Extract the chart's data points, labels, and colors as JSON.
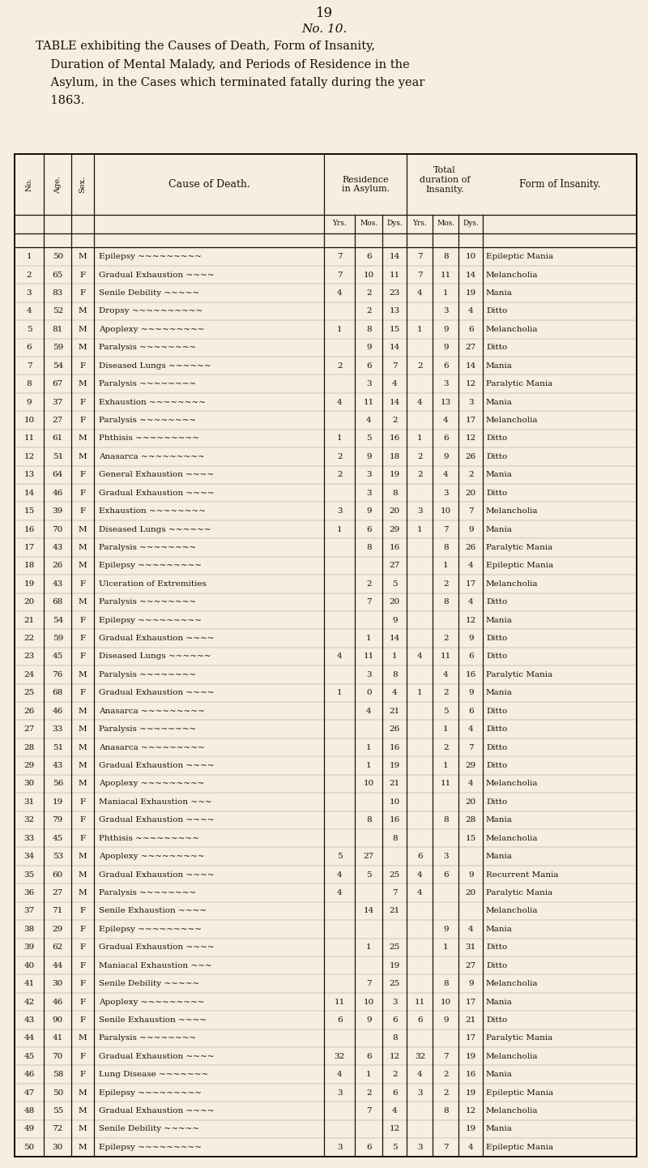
{
  "page_number": "19",
  "no_label": "No. 10.",
  "title_line1": "TABLE exhibiting the Causes of Death, Form of Insanity,",
  "title_line2": "    Duration of Mental Malady, and Periods of Residence in the",
  "title_line3": "    Asylum, in the Cases which terminated fatally during the year",
  "title_line4": "    1863.",
  "bg_color": "#f5efe0",
  "text_color": "#1a1008",
  "rows": [
    [
      1,
      50,
      "M",
      "Epilepsy",
      7,
      6,
      14,
      7,
      8,
      10,
      "Epileptic Mania"
    ],
    [
      2,
      65,
      "F",
      "Gradual Exhaustion",
      7,
      10,
      11,
      7,
      11,
      14,
      "Melancholia"
    ],
    [
      3,
      83,
      "F",
      "Senile Debility",
      4,
      2,
      23,
      4,
      1,
      19,
      "Mania"
    ],
    [
      4,
      52,
      "M",
      "Dropsy",
      "",
      2,
      13,
      "",
      3,
      4,
      "Ditto"
    ],
    [
      5,
      81,
      "M",
      "Apoplexy",
      1,
      8,
      15,
      1,
      9,
      6,
      "Melancholia"
    ],
    [
      6,
      59,
      "M",
      "Paralysis",
      "",
      9,
      14,
      "",
      9,
      27,
      "Ditto"
    ],
    [
      7,
      54,
      "F",
      "Diseased Lungs",
      2,
      6,
      7,
      2,
      6,
      14,
      "Mania"
    ],
    [
      8,
      67,
      "M",
      "Paralysis",
      "",
      3,
      4,
      "",
      3,
      12,
      "Paralytic Mania"
    ],
    [
      9,
      37,
      "F",
      "Exhaustion",
      4,
      11,
      14,
      4,
      13,
      3,
      "Mania"
    ],
    [
      10,
      27,
      "F",
      "Paralysis",
      "",
      4,
      2,
      "",
      4,
      17,
      "Melancholia"
    ],
    [
      11,
      61,
      "M",
      "Phthisis",
      1,
      5,
      16,
      1,
      6,
      12,
      "Ditto"
    ],
    [
      12,
      51,
      "M",
      "Anasarca",
      2,
      9,
      18,
      2,
      9,
      26,
      "Ditto"
    ],
    [
      13,
      64,
      "F",
      "General Exhaustion",
      2,
      3,
      19,
      2,
      4,
      2,
      "Mania"
    ],
    [
      14,
      46,
      "F",
      "Gradual Exhaustion",
      "",
      3,
      8,
      "",
      3,
      20,
      "Ditto"
    ],
    [
      15,
      39,
      "F",
      "Exhaustion",
      3,
      9,
      20,
      3,
      10,
      7,
      "Melancholia"
    ],
    [
      16,
      70,
      "M",
      "Diseased Lungs",
      1,
      6,
      29,
      1,
      7,
      9,
      "Mania"
    ],
    [
      17,
      43,
      "M",
      "Paralysis",
      "",
      8,
      16,
      "",
      8,
      26,
      "Paralytic Mania"
    ],
    [
      18,
      26,
      "M",
      "Epilepsy",
      "",
      "",
      27,
      "",
      1,
      4,
      "Epileptic Mania"
    ],
    [
      19,
      43,
      "F",
      "Ulceration of Extremities",
      "",
      2,
      5,
      "",
      2,
      17,
      "Melancholia"
    ],
    [
      20,
      68,
      "M",
      "Paralysis",
      "",
      7,
      20,
      "",
      8,
      4,
      "Ditto"
    ],
    [
      21,
      54,
      "F",
      "Epilepsy",
      "",
      "",
      9,
      "",
      "",
      12,
      "Mania"
    ],
    [
      22,
      59,
      "F",
      "Gradual Exhaustion",
      "",
      1,
      14,
      "",
      2,
      9,
      "Ditto"
    ],
    [
      23,
      45,
      "F",
      "Diseased Lungs",
      4,
      11,
      1,
      4,
      11,
      6,
      "Ditto"
    ],
    [
      24,
      76,
      "M",
      "Paralysis",
      "",
      3,
      8,
      "",
      4,
      16,
      "Paralytic Mania"
    ],
    [
      25,
      68,
      "F",
      "Gradual Exhaustion",
      1,
      0,
      4,
      1,
      2,
      9,
      "Mania"
    ],
    [
      26,
      46,
      "M",
      "Anasarca",
      "",
      4,
      21,
      "",
      5,
      6,
      "Ditto"
    ],
    [
      27,
      33,
      "M",
      "Paralysis",
      "",
      "",
      26,
      "",
      1,
      4,
      "Ditto"
    ],
    [
      28,
      51,
      "M",
      "Anasarca",
      "",
      1,
      16,
      "",
      2,
      7,
      "Ditto"
    ],
    [
      29,
      43,
      "M",
      "Gradual Exhaustion",
      "",
      1,
      19,
      "",
      1,
      29,
      "Ditto"
    ],
    [
      30,
      56,
      "M",
      "Apoplexy",
      "",
      10,
      21,
      "",
      11,
      4,
      "Melancholia"
    ],
    [
      31,
      19,
      "F",
      "Maniacal Exhaustion",
      "",
      "",
      10,
      "",
      "",
      20,
      "Ditto"
    ],
    [
      32,
      79,
      "F",
      "Gradual Exhaustion",
      "",
      8,
      16,
      "",
      8,
      28,
      "Mania"
    ],
    [
      33,
      45,
      "F",
      "Phthisis",
      "",
      "",
      8,
      "",
      "",
      15,
      "Melancholia"
    ],
    [
      34,
      53,
      "M",
      "Apoplexy",
      5,
      27,
      "",
      6,
      3,
      "",
      "Mania"
    ],
    [
      35,
      60,
      "M",
      "Gradual Exhaustion",
      4,
      5,
      25,
      4,
      6,
      9,
      "Recurrent Mania"
    ],
    [
      36,
      27,
      "M",
      "Paralysis",
      4,
      "",
      7,
      4,
      "",
      20,
      "Paralytic Mania"
    ],
    [
      37,
      71,
      "F",
      "Senile Exhaustion",
      "",
      14,
      21,
      "",
      "",
      "",
      "Melancholia"
    ],
    [
      38,
      29,
      "F",
      "Epilepsy",
      "",
      "",
      "",
      "",
      9,
      4,
      "Mania"
    ],
    [
      39,
      62,
      "F",
      "Gradual Exhaustion",
      "",
      1,
      25,
      "",
      1,
      31,
      "Ditto"
    ],
    [
      40,
      44,
      "F",
      "Maniacal Exhaustion",
      "",
      "",
      19,
      "",
      "",
      27,
      "Ditto"
    ],
    [
      41,
      30,
      "F",
      "Senile Debility",
      "",
      7,
      25,
      "",
      8,
      9,
      "Melancholia"
    ],
    [
      42,
      46,
      "F",
      "Apoplexy",
      11,
      10,
      3,
      11,
      10,
      17,
      "Mania"
    ],
    [
      43,
      90,
      "F",
      "Senile Exhaustion",
      6,
      9,
      6,
      6,
      9,
      21,
      "Ditto"
    ],
    [
      44,
      41,
      "M",
      "Paralysis",
      "",
      "",
      8,
      "",
      "",
      17,
      "Paralytic Mania"
    ],
    [
      45,
      70,
      "F",
      "Gradual Exhaustion",
      32,
      6,
      12,
      32,
      7,
      19,
      "Melancholia"
    ],
    [
      46,
      58,
      "F",
      "Lung Disease",
      4,
      1,
      2,
      4,
      2,
      16,
      "Mania"
    ],
    [
      47,
      50,
      "M",
      "Epilepsy",
      3,
      2,
      6,
      3,
      2,
      19,
      "Epileptic Mania"
    ],
    [
      48,
      55,
      "M",
      "Gradual Exhaustion",
      "",
      7,
      4,
      "",
      8,
      12,
      "Melancholia"
    ],
    [
      49,
      72,
      "M",
      "Senile Debility",
      "",
      "",
      12,
      "",
      "",
      19,
      "Mania"
    ],
    [
      50,
      30,
      "M",
      "Epilepsy",
      3,
      6,
      5,
      3,
      7,
      4,
      "Epileptic Mania"
    ]
  ]
}
